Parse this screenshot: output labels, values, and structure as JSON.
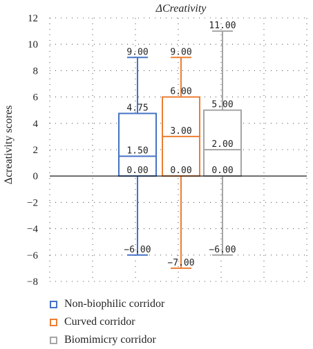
{
  "chart_data": {
    "type": "box",
    "title": "ΔCreativity",
    "ylabel": "Δcreativity scores",
    "ylim": [
      -8,
      12
    ],
    "yticks": [
      -8,
      -6,
      -4,
      -2,
      0,
      2,
      4,
      6,
      8,
      10,
      12
    ],
    "ytick_labels": [
      "−8",
      "−6",
      "−4",
      "−2",
      "0",
      "2",
      "4",
      "6",
      "8",
      "10",
      "12"
    ],
    "grid": "dotted",
    "legend_position": "bottom-left",
    "series": [
      {
        "name": "Non-biophilic corridor",
        "color": "#4472C4",
        "min": -6,
        "q1": 0,
        "median": 1.5,
        "q3": 4.75,
        "max": 9,
        "labels": {
          "min": "−6.00",
          "q1": "0.00",
          "median": "1.50",
          "q3": "4.75",
          "max": "9.00"
        }
      },
      {
        "name": "Curved corridor",
        "color": "#ED7D31",
        "min": -7,
        "q1": 0,
        "median": 3,
        "q3": 6,
        "max": 9,
        "labels": {
          "min": "−7.00",
          "q1": "0.00",
          "median": "3.00",
          "q3": "6.00",
          "max": "9.00"
        }
      },
      {
        "name": "Biomimicry corridor",
        "color": "#A5A5A5",
        "min": -6,
        "q1": 0,
        "median": 2,
        "q3": 5,
        "max": 11,
        "labels": {
          "min": "−6.00",
          "q1": "0.00",
          "median": "2.00",
          "q3": "5.00",
          "max": "11.00"
        }
      }
    ]
  }
}
